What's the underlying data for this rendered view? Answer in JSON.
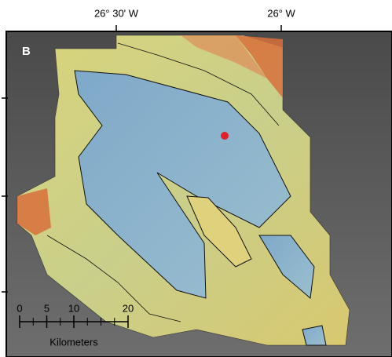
{
  "panel_label": "B",
  "longitude_labels": [
    "26° 30' W",
    "26° W"
  ],
  "scale_bar": {
    "ticks": [
      0,
      5,
      10,
      20
    ],
    "unit": "Kilometers"
  }
}
